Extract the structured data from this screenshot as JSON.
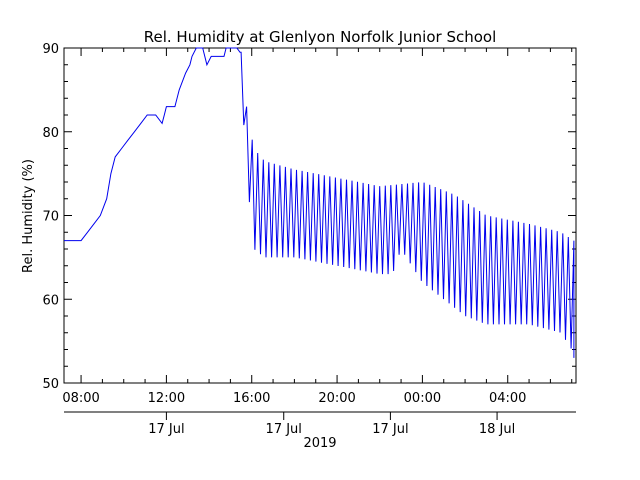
{
  "chart_data": {
    "type": "line",
    "title": "Rel. Humidity at Glenlyon Norfolk Junior School",
    "ylabel": "Rel. Humidity (%)",
    "xlabel": "2019",
    "ylim": [
      50,
      90
    ],
    "yticks": [
      50,
      60,
      70,
      80,
      90
    ],
    "xlim_hours": [
      7.2,
      31.2
    ],
    "xticks": [
      {
        "hour": 8,
        "label": "08:00"
      },
      {
        "hour": 12,
        "label": "12:00"
      },
      {
        "hour": 16,
        "label": "16:00"
      },
      {
        "hour": 20,
        "label": "20:00"
      },
      {
        "hour": 24,
        "label": "00:00"
      },
      {
        "hour": 28,
        "label": "04:00"
      }
    ],
    "date_labels": [
      {
        "hour": 12,
        "label": "17 Jul"
      },
      {
        "hour": 17.5,
        "label": "17 Jul"
      },
      {
        "hour": 22.5,
        "label": "17 Jul"
      },
      {
        "hour": 27.5,
        "label": "18 Jul"
      }
    ],
    "series_color": "#0000ee",
    "rise_points": [
      [
        7.2,
        67
      ],
      [
        8.0,
        67
      ],
      [
        8.3,
        68
      ],
      [
        8.6,
        69
      ],
      [
        8.9,
        70
      ],
      [
        9.2,
        72
      ],
      [
        9.4,
        75
      ],
      [
        9.6,
        77
      ],
      [
        9.9,
        78
      ],
      [
        10.2,
        79
      ],
      [
        10.5,
        80
      ],
      [
        10.8,
        81
      ],
      [
        11.1,
        82
      ],
      [
        11.5,
        82
      ],
      [
        11.8,
        81
      ],
      [
        11.9,
        82
      ],
      [
        12.0,
        83
      ],
      [
        12.4,
        83
      ],
      [
        12.6,
        85
      ],
      [
        12.9,
        87
      ],
      [
        13.1,
        88
      ],
      [
        13.2,
        89
      ],
      [
        13.4,
        90
      ],
      [
        13.7,
        90
      ],
      [
        13.9,
        88
      ],
      [
        14.1,
        89
      ],
      [
        14.7,
        89
      ],
      [
        14.8,
        90
      ],
      [
        15.3,
        90
      ],
      [
        15.45,
        89.5
      ]
    ],
    "oscillation": {
      "start_hour": 15.5,
      "end_hour": 31.1,
      "period_hours": 0.26,
      "high": [
        [
          15.5,
          89.5
        ],
        [
          15.8,
          82
        ],
        [
          16.1,
          78
        ],
        [
          16.6,
          76.5
        ],
        [
          18.0,
          75.5
        ],
        [
          20.0,
          74.5
        ],
        [
          22.0,
          73.5
        ],
        [
          24.0,
          74
        ],
        [
          25.5,
          72.5
        ],
        [
          27.0,
          70
        ],
        [
          29.0,
          69
        ],
        [
          30.5,
          68
        ],
        [
          31.1,
          67
        ]
      ],
      "low": [
        [
          15.5,
          86
        ],
        [
          15.8,
          74
        ],
        [
          16.1,
          66
        ],
        [
          16.6,
          65
        ],
        [
          18.0,
          65
        ],
        [
          20.0,
          64
        ],
        [
          22.0,
          63
        ],
        [
          22.6,
          63
        ],
        [
          23.0,
          66
        ],
        [
          24.0,
          62
        ],
        [
          25.0,
          60
        ],
        [
          26.0,
          58
        ],
        [
          27.0,
          57
        ],
        [
          29.0,
          57
        ],
        [
          30.5,
          56
        ],
        [
          31.0,
          54
        ],
        [
          31.1,
          53
        ]
      ]
    },
    "final_value": 53
  }
}
